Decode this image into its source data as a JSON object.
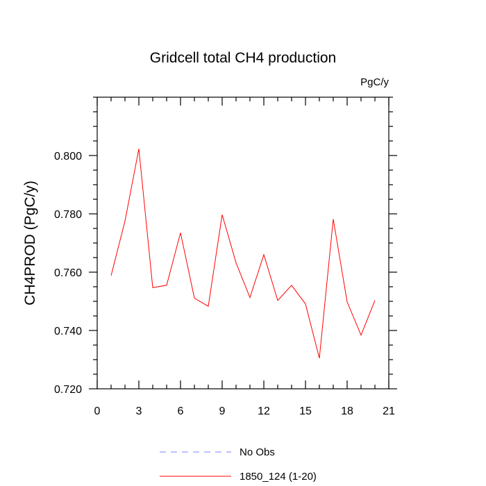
{
  "chart_data": {
    "type": "line",
    "title": "Gridcell total CH4 production",
    "units_label": "PgC/y",
    "ylabel": "CH4PROD  (PgC/y)",
    "xlabel": "",
    "xlim": [
      0,
      21
    ],
    "ylim": [
      0.72,
      0.82
    ],
    "x_ticks": [
      0,
      3,
      6,
      9,
      12,
      15,
      18,
      21
    ],
    "x_tick_labels": [
      "0",
      "3",
      "6",
      "9",
      "12",
      "15",
      "18",
      "21"
    ],
    "y_ticks": [
      0.72,
      0.74,
      0.76,
      0.78,
      0.8
    ],
    "y_tick_labels": [
      "0.720",
      "0.740",
      "0.760",
      "0.780",
      "0.800"
    ],
    "grid": false,
    "legend_position": "bottom-center",
    "series": [
      {
        "name": "1850_124 (1-20)",
        "color": "#ff0000",
        "style": "solid",
        "x": [
          1,
          2,
          3,
          4,
          5,
          6,
          7,
          8,
          9,
          10,
          11,
          12,
          13,
          14,
          15,
          16,
          17,
          18,
          19,
          20
        ],
        "y": [
          0.7588,
          0.7775,
          0.8023,
          0.7547,
          0.7555,
          0.7735,
          0.7511,
          0.7483,
          0.7797,
          0.7632,
          0.7513,
          0.766,
          0.7503,
          0.7555,
          0.7491,
          0.7305,
          0.7782,
          0.7498,
          0.7384,
          0.7503
        ]
      }
    ],
    "legend": [
      {
        "label": "No Obs",
        "color": "#8080ff",
        "style": "dashed"
      },
      {
        "label": "1850_124 (1-20)",
        "color": "#ff0000",
        "style": "solid"
      }
    ]
  }
}
